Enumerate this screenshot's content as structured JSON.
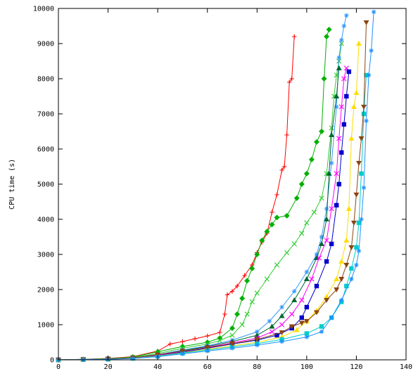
{
  "chart_data": {
    "type": "line",
    "title": "",
    "xlabel": "",
    "ylabel": "CPU time (s)",
    "xlim": [
      0,
      140
    ],
    "ylim": [
      0,
      10000
    ],
    "xticks": [
      0,
      20,
      40,
      60,
      80,
      100,
      120,
      140
    ],
    "yticks": [
      0,
      1000,
      2000,
      3000,
      4000,
      5000,
      6000,
      7000,
      8000,
      9000,
      10000
    ],
    "grid": false,
    "legend": "none",
    "series": [
      {
        "color": "#ff0000",
        "marker": "plus",
        "points": [
          [
            0,
            0
          ],
          [
            10,
            15
          ],
          [
            20,
            40
          ],
          [
            30,
            90
          ],
          [
            40,
            250
          ],
          [
            45,
            450
          ],
          [
            50,
            520
          ],
          [
            55,
            600
          ],
          [
            60,
            680
          ],
          [
            65,
            780
          ],
          [
            67,
            1300
          ],
          [
            68,
            1850
          ],
          [
            70,
            1950
          ],
          [
            72,
            2100
          ],
          [
            75,
            2400
          ],
          [
            78,
            2700
          ],
          [
            80,
            3050
          ],
          [
            82,
            3350
          ],
          [
            84,
            3600
          ],
          [
            86,
            4200
          ],
          [
            88,
            4700
          ],
          [
            90,
            5400
          ],
          [
            91,
            5500
          ],
          [
            92,
            6400
          ],
          [
            93,
            7900
          ],
          [
            94,
            8000
          ],
          [
            95,
            9200
          ]
        ]
      },
      {
        "color": "#00b000",
        "marker": "diamond",
        "points": [
          [
            0,
            0
          ],
          [
            10,
            15
          ],
          [
            20,
            35
          ],
          [
            30,
            80
          ],
          [
            40,
            230
          ],
          [
            50,
            380
          ],
          [
            60,
            500
          ],
          [
            65,
            620
          ],
          [
            70,
            900
          ],
          [
            72,
            1300
          ],
          [
            74,
            1750
          ],
          [
            76,
            2250
          ],
          [
            78,
            2600
          ],
          [
            80,
            3000
          ],
          [
            82,
            3400
          ],
          [
            84,
            3650
          ],
          [
            86,
            3850
          ],
          [
            88,
            4050
          ],
          [
            92,
            4100
          ],
          [
            96,
            4600
          ],
          [
            98,
            5000
          ],
          [
            100,
            5300
          ],
          [
            102,
            5700
          ],
          [
            104,
            6200
          ],
          [
            106,
            6500
          ],
          [
            107,
            8000
          ],
          [
            108,
            9200
          ],
          [
            109,
            9400
          ]
        ]
      },
      {
        "color": "#33cc33",
        "marker": "x",
        "points": [
          [
            0,
            0
          ],
          [
            10,
            12
          ],
          [
            20,
            30
          ],
          [
            30,
            70
          ],
          [
            40,
            180
          ],
          [
            50,
            330
          ],
          [
            60,
            450
          ],
          [
            65,
            550
          ],
          [
            70,
            700
          ],
          [
            74,
            1000
          ],
          [
            76,
            1300
          ],
          [
            78,
            1650
          ],
          [
            80,
            1900
          ],
          [
            84,
            2300
          ],
          [
            88,
            2700
          ],
          [
            92,
            3050
          ],
          [
            95,
            3300
          ],
          [
            98,
            3600
          ],
          [
            100,
            3900
          ],
          [
            103,
            4200
          ],
          [
            106,
            4600
          ],
          [
            108,
            5300
          ],
          [
            110,
            6600
          ],
          [
            111,
            7500
          ],
          [
            112,
            8100
          ],
          [
            113,
            8500
          ],
          [
            114,
            9000
          ]
        ]
      },
      {
        "color": "#3399ff",
        "marker": "star",
        "points": [
          [
            0,
            0
          ],
          [
            10,
            10
          ],
          [
            20,
            25
          ],
          [
            30,
            60
          ],
          [
            40,
            150
          ],
          [
            50,
            280
          ],
          [
            60,
            400
          ],
          [
            70,
            560
          ],
          [
            80,
            800
          ],
          [
            85,
            1100
          ],
          [
            90,
            1500
          ],
          [
            95,
            1950
          ],
          [
            100,
            2500
          ],
          [
            104,
            3000
          ],
          [
            106,
            3500
          ],
          [
            108,
            4300
          ],
          [
            110,
            5600
          ],
          [
            112,
            7200
          ],
          [
            113,
            8600
          ],
          [
            114,
            9100
          ],
          [
            115,
            9500
          ],
          [
            116,
            9800
          ]
        ]
      },
      {
        "color": "#006633",
        "marker": "triangle-up",
        "points": [
          [
            0,
            0
          ],
          [
            10,
            10
          ],
          [
            20,
            24
          ],
          [
            30,
            55
          ],
          [
            40,
            140
          ],
          [
            50,
            260
          ],
          [
            60,
            380
          ],
          [
            70,
            520
          ],
          [
            80,
            700
          ],
          [
            86,
            950
          ],
          [
            90,
            1250
          ],
          [
            95,
            1700
          ],
          [
            100,
            2300
          ],
          [
            104,
            2900
          ],
          [
            106,
            3300
          ],
          [
            108,
            4000
          ],
          [
            109,
            5300
          ],
          [
            110,
            6400
          ],
          [
            112,
            7500
          ],
          [
            113,
            8300
          ]
        ]
      },
      {
        "color": "#ff00ff",
        "marker": "x",
        "points": [
          [
            0,
            0
          ],
          [
            10,
            9
          ],
          [
            20,
            22
          ],
          [
            30,
            50
          ],
          [
            40,
            130
          ],
          [
            50,
            240
          ],
          [
            60,
            360
          ],
          [
            70,
            480
          ],
          [
            80,
            620
          ],
          [
            86,
            800
          ],
          [
            90,
            1000
          ],
          [
            94,
            1300
          ],
          [
            98,
            1700
          ],
          [
            102,
            2300
          ],
          [
            105,
            2900
          ],
          [
            108,
            3400
          ],
          [
            110,
            4300
          ],
          [
            112,
            5300
          ],
          [
            113,
            6300
          ],
          [
            114,
            7200
          ],
          [
            115,
            8000
          ],
          [
            116,
            8300
          ]
        ]
      },
      {
        "color": "#0000cc",
        "marker": "square",
        "points": [
          [
            0,
            0
          ],
          [
            10,
            9
          ],
          [
            20,
            20
          ],
          [
            30,
            48
          ],
          [
            40,
            120
          ],
          [
            50,
            220
          ],
          [
            60,
            330
          ],
          [
            70,
            450
          ],
          [
            80,
            560
          ],
          [
            88,
            700
          ],
          [
            94,
            900
          ],
          [
            98,
            1200
          ],
          [
            100,
            1500
          ],
          [
            104,
            2100
          ],
          [
            108,
            2800
          ],
          [
            110,
            3300
          ],
          [
            112,
            4400
          ],
          [
            113,
            5000
          ],
          [
            114,
            5900
          ],
          [
            115,
            6700
          ],
          [
            116,
            7500
          ],
          [
            117,
            8200
          ]
        ]
      },
      {
        "color": "#ffdd00",
        "marker": "triangle-up",
        "points": [
          [
            0,
            0
          ],
          [
            10,
            8
          ],
          [
            20,
            18
          ],
          [
            30,
            45
          ],
          [
            40,
            110
          ],
          [
            50,
            200
          ],
          [
            60,
            300
          ],
          [
            70,
            400
          ],
          [
            80,
            500
          ],
          [
            90,
            650
          ],
          [
            96,
            850
          ],
          [
            100,
            1100
          ],
          [
            104,
            1400
          ],
          [
            108,
            1800
          ],
          [
            112,
            2300
          ],
          [
            114,
            2800
          ],
          [
            116,
            3400
          ],
          [
            117,
            4300
          ],
          [
            118,
            6300
          ],
          [
            119,
            7200
          ],
          [
            120,
            7600
          ],
          [
            121,
            9000
          ]
        ]
      },
      {
        "color": "#00cccc",
        "marker": "square",
        "points": [
          [
            0,
            0
          ],
          [
            10,
            8
          ],
          [
            20,
            17
          ],
          [
            30,
            42
          ],
          [
            40,
            100
          ],
          [
            50,
            190
          ],
          [
            60,
            280
          ],
          [
            70,
            370
          ],
          [
            80,
            460
          ],
          [
            90,
            580
          ],
          [
            100,
            750
          ],
          [
            106,
            950
          ],
          [
            110,
            1200
          ],
          [
            114,
            1650
          ],
          [
            116,
            2100
          ],
          [
            118,
            2600
          ],
          [
            120,
            3200
          ],
          [
            121,
            3900
          ],
          [
            122,
            5300
          ],
          [
            123,
            7000
          ],
          [
            124,
            8100
          ]
        ]
      },
      {
        "color": "#8b4513",
        "marker": "triangle-down",
        "points": [
          [
            0,
            0
          ],
          [
            10,
            10
          ],
          [
            20,
            25
          ],
          [
            30,
            60
          ],
          [
            40,
            150
          ],
          [
            50,
            250
          ],
          [
            60,
            350
          ],
          [
            70,
            460
          ],
          [
            80,
            580
          ],
          [
            90,
            780
          ],
          [
            94,
            950
          ],
          [
            98,
            1050
          ],
          [
            100,
            1100
          ],
          [
            104,
            1350
          ],
          [
            108,
            1700
          ],
          [
            112,
            2000
          ],
          [
            114,
            2300
          ],
          [
            116,
            2700
          ],
          [
            118,
            3200
          ],
          [
            119,
            3900
          ],
          [
            120,
            4700
          ],
          [
            121,
            5600
          ],
          [
            122,
            6300
          ],
          [
            123,
            7200
          ],
          [
            124,
            9600
          ]
        ]
      },
      {
        "color": "#1e90ff",
        "marker": "star",
        "points": [
          [
            0,
            0
          ],
          [
            10,
            7
          ],
          [
            20,
            15
          ],
          [
            30,
            38
          ],
          [
            40,
            90
          ],
          [
            50,
            170
          ],
          [
            60,
            250
          ],
          [
            70,
            330
          ],
          [
            80,
            420
          ],
          [
            90,
            520
          ],
          [
            100,
            650
          ],
          [
            106,
            800
          ],
          [
            110,
            1200
          ],
          [
            114,
            1700
          ],
          [
            118,
            2300
          ],
          [
            120,
            2700
          ],
          [
            121,
            3100
          ],
          [
            122,
            4000
          ],
          [
            123,
            4900
          ],
          [
            124,
            6800
          ],
          [
            125,
            8100
          ],
          [
            126,
            8800
          ],
          [
            127,
            9900
          ]
        ]
      }
    ]
  }
}
